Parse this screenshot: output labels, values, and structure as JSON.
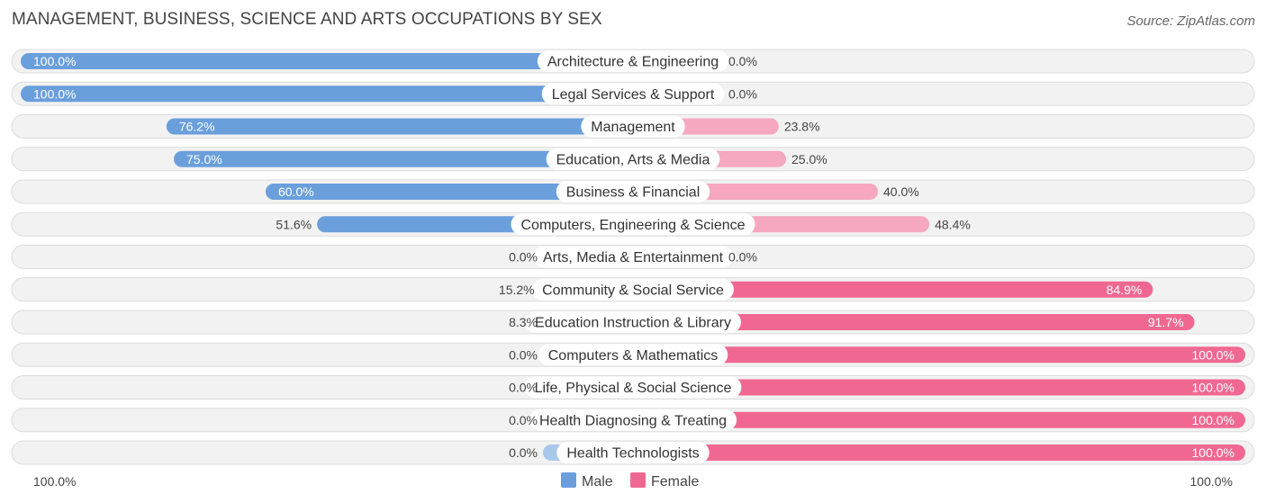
{
  "title": "MANAGEMENT, BUSINESS, SCIENCE AND ARTS OCCUPATIONS BY SEX",
  "source": "Source: ZipAtlas.com",
  "colors": {
    "male_strong": "#6a9fdc",
    "male_light": "#a9c8ec",
    "female_strong": "#f06892",
    "female_light": "#f6a8c0",
    "row_bg": "#f2f2f2"
  },
  "chart_data": {
    "type": "bar",
    "orientation": "horizontal-diverging",
    "title": "MANAGEMENT, BUSINESS, SCIENCE AND ARTS OCCUPATIONS BY SEX",
    "categories": [
      "Architecture & Engineering",
      "Legal Services & Support",
      "Management",
      "Education, Arts & Media",
      "Business & Financial",
      "Computers, Engineering & Science",
      "Arts, Media & Entertainment",
      "Community & Social Service",
      "Education Instruction & Library",
      "Computers & Mathematics",
      "Life, Physical & Social Science",
      "Health Diagnosing & Treating",
      "Health Technologists"
    ],
    "series": [
      {
        "name": "Male",
        "values": [
          100.0,
          100.0,
          76.2,
          75.0,
          60.0,
          51.6,
          0.0,
          15.2,
          8.3,
          0.0,
          0.0,
          0.0,
          0.0
        ],
        "labels": [
          "100.0%",
          "100.0%",
          "76.2%",
          "75.0%",
          "60.0%",
          "51.6%",
          "0.0%",
          "15.2%",
          "8.3%",
          "0.0%",
          "0.0%",
          "0.0%",
          "0.0%"
        ]
      },
      {
        "name": "Female",
        "values": [
          0.0,
          0.0,
          23.8,
          25.0,
          40.0,
          48.4,
          0.0,
          84.9,
          91.7,
          100.0,
          100.0,
          100.0,
          100.0
        ],
        "labels": [
          "0.0%",
          "0.0%",
          "23.8%",
          "25.0%",
          "40.0%",
          "48.4%",
          "0.0%",
          "84.9%",
          "91.7%",
          "100.0%",
          "100.0%",
          "100.0%",
          "100.0%"
        ]
      }
    ],
    "xlim": [
      0,
      100
    ],
    "axis_labels": {
      "left": "100.0%",
      "right": "100.0%"
    },
    "legend": {
      "position": "bottom-center",
      "entries": [
        "Male",
        "Female"
      ]
    }
  }
}
